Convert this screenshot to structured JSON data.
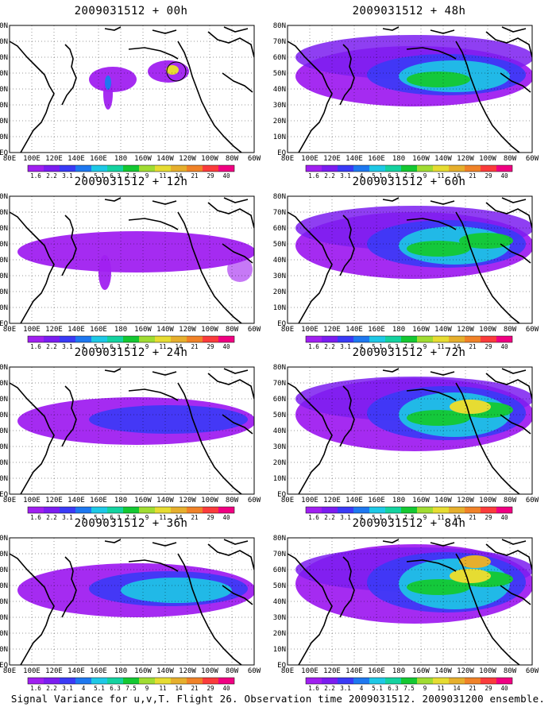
{
  "caption": "Signal Variance for u,v,T. Flight 26. Observation time 2009031512. 2009031200 ensemble.",
  "colorbar": {
    "levels": [
      "1.6",
      "2.2",
      "3.1",
      "4",
      "5.1",
      "6.3",
      "7.5",
      "9",
      "11",
      "14",
      "21",
      "29",
      "40"
    ],
    "colors": [
      "#a020f0",
      "#7b1df0",
      "#3a3af6",
      "#1e78f0",
      "#1ec8e6",
      "#14d2a0",
      "#14c832",
      "#a0dc32",
      "#e6dc32",
      "#e6af2d",
      "#f08228",
      "#fa3c3c",
      "#f00082"
    ]
  },
  "axes": {
    "lat_labels": [
      "EQ",
      "10N",
      "20N",
      "30N",
      "40N",
      "50N",
      "60N",
      "70N",
      "80N"
    ],
    "lon_labels": [
      "80E",
      "100E",
      "120E",
      "140E",
      "160E",
      "180",
      "160W",
      "140W",
      "120W",
      "100W",
      "80W",
      "60W"
    ]
  },
  "panels": [
    {
      "title": "2009031512 + 00h",
      "level": 1
    },
    {
      "title": "2009031512 + 48h",
      "level": 5
    },
    {
      "title": "2009031512 + 12h",
      "level": 2
    },
    {
      "title": "2009031512 + 60h",
      "level": 6
    },
    {
      "title": "2009031512 + 24h",
      "level": 3
    },
    {
      "title": "2009031512 + 72h",
      "level": 7
    },
    {
      "title": "2009031512 + 36h",
      "level": 4
    },
    {
      "title": "2009031512 + 84h",
      "level": 8
    }
  ],
  "chart_data": [
    {
      "type": "heatmap",
      "title": "2009031512 + 00h",
      "x_range": [
        "80E",
        "60W"
      ],
      "y_range": [
        "EQ",
        "80N"
      ],
      "legend": "bottom"
    },
    {
      "type": "heatmap",
      "title": "2009031512 + 48h",
      "x_range": [
        "80E",
        "60W"
      ],
      "y_range": [
        "EQ",
        "80N"
      ],
      "legend": "bottom"
    },
    {
      "type": "heatmap",
      "title": "2009031512 + 12h",
      "x_range": [
        "80E",
        "60W"
      ],
      "y_range": [
        "EQ",
        "80N"
      ],
      "legend": "bottom"
    },
    {
      "type": "heatmap",
      "title": "2009031512 + 60h",
      "x_range": [
        "80E",
        "60W"
      ],
      "y_range": [
        "EQ",
        "80N"
      ],
      "legend": "bottom"
    },
    {
      "type": "heatmap",
      "title": "2009031512 + 24h",
      "x_range": [
        "80E",
        "60W"
      ],
      "y_range": [
        "EQ",
        "80N"
      ],
      "legend": "bottom"
    },
    {
      "type": "heatmap",
      "title": "2009031512 + 72h",
      "x_range": [
        "80E",
        "60W"
      ],
      "y_range": [
        "EQ",
        "80N"
      ],
      "legend": "bottom"
    },
    {
      "type": "heatmap",
      "title": "2009031512 + 36h",
      "x_range": [
        "80E",
        "60W"
      ],
      "y_range": [
        "EQ",
        "80N"
      ],
      "legend": "bottom"
    },
    {
      "type": "heatmap",
      "title": "2009031512 + 84h",
      "x_range": [
        "80E",
        "60W"
      ],
      "y_range": [
        "EQ",
        "80N"
      ],
      "legend": "bottom"
    }
  ]
}
